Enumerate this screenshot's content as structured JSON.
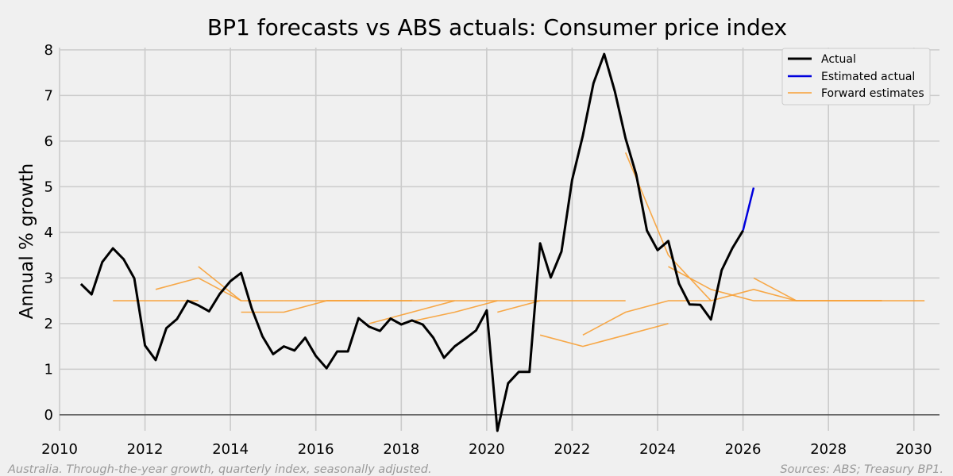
{
  "chart_data": {
    "type": "line",
    "title": "BP1 forecasts vs ABS actuals: Consumer price index",
    "xlabel": "",
    "ylabel": "Annual % growth",
    "xlim": [
      2010.0,
      2030.6
    ],
    "ylim": [
      -0.35,
      8.05
    ],
    "xticks": [
      "2010",
      "2012",
      "2014",
      "2016",
      "2018",
      "2020",
      "2022",
      "2024",
      "2026",
      "2028",
      "2030"
    ],
    "yticks": [
      "0",
      "1",
      "2",
      "3",
      "4",
      "5",
      "6",
      "7",
      "8"
    ],
    "grid": true,
    "legend_position": "top-right",
    "legend": [
      "Actual",
      "Estimated actual",
      "Forward estimates"
    ],
    "colors": {
      "actual": "#000000",
      "estimated": "#0000dd",
      "forward": "#f7a035",
      "grid": "#cbcbcb",
      "zero": "#555555"
    },
    "series": [
      {
        "name": "Actual",
        "x": [
          2010.5,
          2010.75,
          2011.0,
          2011.25,
          2011.5,
          2011.75,
          2012.0,
          2012.25,
          2012.5,
          2012.75,
          2013.0,
          2013.25,
          2013.5,
          2013.75,
          2014.0,
          2014.25,
          2014.5,
          2014.75,
          2015.0,
          2015.25,
          2015.5,
          2015.75,
          2016.0,
          2016.25,
          2016.5,
          2016.75,
          2017.0,
          2017.25,
          2017.5,
          2017.75,
          2018.0,
          2018.25,
          2018.5,
          2018.75,
          2019.0,
          2019.25,
          2019.5,
          2019.75,
          2020.0,
          2020.25,
          2020.5,
          2020.75,
          2021.0,
          2021.25,
          2021.5,
          2021.75,
          2022.0,
          2022.25,
          2022.5,
          2022.75,
          2023.0,
          2023.25,
          2023.5,
          2023.75,
          2024.0,
          2024.25,
          2024.5,
          2024.75,
          2025.0,
          2025.25,
          2025.5,
          2025.75,
          2026.0
        ],
        "values": [
          2.87,
          2.64,
          3.35,
          3.65,
          3.41,
          2.99,
          1.52,
          1.2,
          1.9,
          2.1,
          2.5,
          2.4,
          2.27,
          2.65,
          2.93,
          3.11,
          2.33,
          1.72,
          1.33,
          1.5,
          1.41,
          1.69,
          1.29,
          1.02,
          1.39,
          1.39,
          2.12,
          1.93,
          1.84,
          2.11,
          1.98,
          2.07,
          1.98,
          1.69,
          1.25,
          1.5,
          1.67,
          1.85,
          2.29,
          -0.35,
          0.69,
          0.94,
          0.94,
          3.76,
          3.01,
          3.58,
          5.15,
          6.12,
          7.27,
          7.91,
          7.09,
          6.06,
          5.27,
          4.04,
          3.61,
          3.81,
          2.88,
          2.42,
          2.41,
          2.09,
          3.17,
          3.65,
          4.04
        ]
      },
      {
        "name": "Estimated actual",
        "x": [
          2026.0,
          2026.25
        ],
        "values": [
          4.04,
          4.98
        ]
      },
      {
        "name": "Forward estimates",
        "lines": [
          {
            "x": [
              2011.25,
              2013.25
            ],
            "values": [
              2.5,
              2.5
            ]
          },
          {
            "x": [
              2012.25,
              2013.25,
              2014.25
            ],
            "values": [
              2.75,
              3.0,
              2.5
            ]
          },
          {
            "x": [
              2013.25,
              2014.25,
              2015.25
            ],
            "values": [
              3.25,
              2.5,
              2.5
            ]
          },
          {
            "x": [
              2014.25,
              2015.25,
              2016.25,
              2017.25
            ],
            "values": [
              2.25,
              2.25,
              2.5,
              2.5
            ]
          },
          {
            "x": [
              2015.25,
              2016.25,
              2017.25,
              2018.25
            ],
            "values": [
              2.5,
              2.5,
              2.5,
              2.5
            ]
          },
          {
            "x": [
              2016.25,
              2017.25,
              2018.25,
              2019.25
            ],
            "values": [
              2.5,
              2.5,
              2.5,
              2.5
            ]
          },
          {
            "x": [
              2017.25,
              2018.25,
              2019.25
            ],
            "values": [
              2.0,
              2.25,
              2.5
            ]
          },
          {
            "x": [
              2018.0,
              2019.25,
              2020.25
            ],
            "values": [
              2.0,
              2.25,
              2.5
            ]
          },
          {
            "x": [
              2019.25,
              2020.25,
              2021.25
            ],
            "values": [
              2.5,
              2.5,
              2.5
            ]
          },
          {
            "x": [
              2020.25,
              2021.25,
              2022.25,
              2023.25
            ],
            "values": [
              2.25,
              2.5,
              2.5,
              2.5
            ]
          },
          {
            "x": [
              2021.25,
              2022.25,
              2023.25,
              2024.25
            ],
            "values": [
              1.75,
              1.5,
              1.75,
              2.0
            ]
          },
          {
            "x": [
              2022.25,
              2023.25,
              2024.25,
              2025.25
            ],
            "values": [
              1.75,
              2.25,
              2.5,
              2.5
            ]
          },
          {
            "x": [
              2023.25,
              2024.25,
              2025.25
            ],
            "values": [
              5.75,
              3.5,
              2.5
            ]
          },
          {
            "x": [
              2024.25,
              2025.25,
              2026.25,
              2027.25,
              2029.25
            ],
            "values": [
              3.25,
              2.75,
              2.5,
              2.5,
              2.5
            ]
          },
          {
            "x": [
              2025.25,
              2026.25,
              2027.25,
              2028.25,
              2030.25
            ],
            "values": [
              2.5,
              2.75,
              2.5,
              2.5,
              2.5
            ]
          },
          {
            "x": [
              2026.25,
              2027.25,
              2028.25,
              2029.25
            ],
            "values": [
              3.0,
              2.5,
              2.5,
              2.5
            ]
          }
        ]
      }
    ]
  },
  "footer": {
    "left": "Australia. Through-the-year growth, quarterly index, seasonally adjusted.",
    "right": "Sources: ABS; Treasury BP1."
  }
}
